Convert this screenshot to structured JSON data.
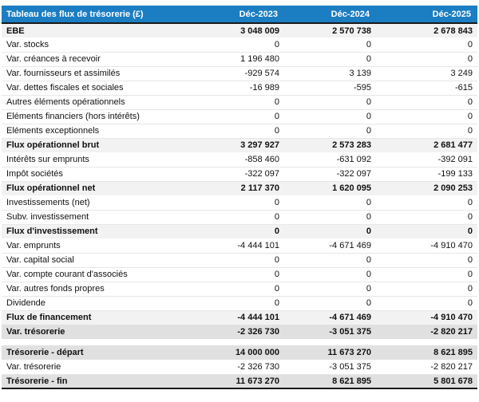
{
  "table": {
    "title": "Tableau des flux de trésorerie (£)",
    "columns": [
      "Déc-2023",
      "Déc-2024",
      "Déc-2025"
    ],
    "rows": [
      {
        "label": "EBE",
        "values": [
          "3 048 009",
          "2 570 738",
          "2 678 843"
        ],
        "style": "subtotal"
      },
      {
        "label": "Var. stocks",
        "values": [
          "0",
          "0",
          "0"
        ],
        "style": "normal"
      },
      {
        "label": "Var. créances à recevoir",
        "values": [
          "1 196 480",
          "0",
          "0"
        ],
        "style": "normal"
      },
      {
        "label": "Var. fournisseurs et assimilés",
        "values": [
          "-929 574",
          "3 139",
          "3 249"
        ],
        "style": "normal"
      },
      {
        "label": "Var. dettes fiscales et sociales",
        "values": [
          "-16 989",
          "-595",
          "-615"
        ],
        "style": "normal"
      },
      {
        "label": "Autres éléments opérationnels",
        "values": [
          "0",
          "0",
          "0"
        ],
        "style": "normal"
      },
      {
        "label": "Eléments financiers (hors intérêts)",
        "values": [
          "0",
          "0",
          "0"
        ],
        "style": "normal"
      },
      {
        "label": "Eléments exceptionnels",
        "values": [
          "0",
          "0",
          "0"
        ],
        "style": "normal"
      },
      {
        "label": "Flux opérationnel brut",
        "values": [
          "3 297 927",
          "2 573 283",
          "2 681 477"
        ],
        "style": "subtotal"
      },
      {
        "label": "Intérêts sur emprunts",
        "values": [
          "-858 460",
          "-631 092",
          "-392 091"
        ],
        "style": "normal"
      },
      {
        "label": "Impôt sociétés",
        "values": [
          "-322 097",
          "-322 097",
          "-199 133"
        ],
        "style": "normal"
      },
      {
        "label": "Flux opérationnel net",
        "values": [
          "2 117 370",
          "1 620 095",
          "2 090 253"
        ],
        "style": "subtotal"
      },
      {
        "label": "Investissements (net)",
        "values": [
          "0",
          "0",
          "0"
        ],
        "style": "normal"
      },
      {
        "label": "Subv. investissement",
        "values": [
          "0",
          "0",
          "0"
        ],
        "style": "normal"
      },
      {
        "label": "Flux d'investissement",
        "values": [
          "0",
          "0",
          "0"
        ],
        "style": "subtotal"
      },
      {
        "label": "Var. emprunts",
        "values": [
          "-4 444 101",
          "-4 671 469",
          "-4 910 470"
        ],
        "style": "normal"
      },
      {
        "label": "Var. capital social",
        "values": [
          "0",
          "0",
          "0"
        ],
        "style": "normal"
      },
      {
        "label": "Var. compte courant d'associés",
        "values": [
          "0",
          "0",
          "0"
        ],
        "style": "normal"
      },
      {
        "label": "Var. autres fonds propres",
        "values": [
          "0",
          "0",
          "0"
        ],
        "style": "normal"
      },
      {
        "label": "Dividende",
        "values": [
          "0",
          "0",
          "0"
        ],
        "style": "normal"
      },
      {
        "label": "Flux de financement",
        "values": [
          "-4 444 101",
          "-4 671 469",
          "-4 910 470"
        ],
        "style": "subtotal"
      },
      {
        "label": "Var. trésorerie",
        "values": [
          "-2 326 730",
          "-3 051 375",
          "-2 820 217"
        ],
        "style": "total"
      },
      {
        "label": "",
        "values": [],
        "style": "spacer"
      },
      {
        "label": "Trésorerie - départ",
        "values": [
          "14 000 000",
          "11 673 270",
          "8 621 895"
        ],
        "style": "total"
      },
      {
        "label": "Var. trésorerie",
        "values": [
          "-2 326 730",
          "-3 051 375",
          "-2 820 217"
        ],
        "style": "normal"
      },
      {
        "label": "Trésorerie - fin",
        "values": [
          "11 673 270",
          "8 621 895",
          "5 801 678"
        ],
        "style": "total"
      }
    ],
    "colors": {
      "header_bg": "#1b7dc2",
      "header_text": "#ffffff",
      "subtotal_row_bg": "#f2f2f2",
      "total_row_bg": "#e0e0e0",
      "rule": "#1a1a1a"
    }
  }
}
